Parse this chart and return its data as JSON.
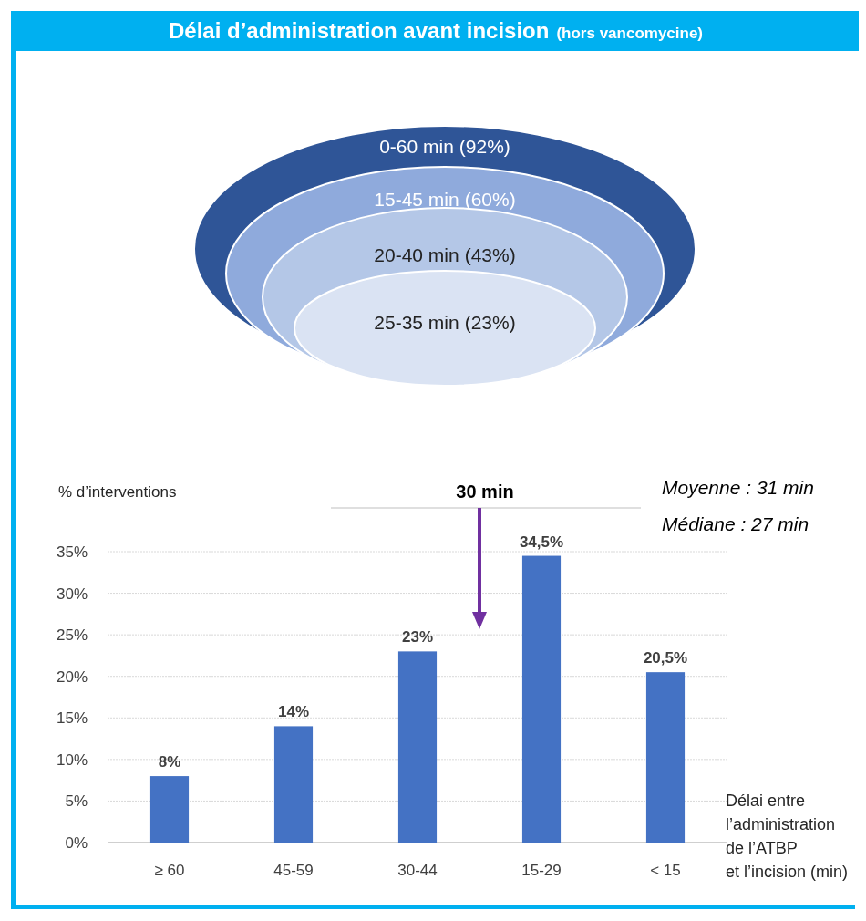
{
  "chart_data": [
    {
      "type": "other",
      "title": "Délai d’administration avant incision",
      "subtitle": "(hors vancomycine)",
      "categories": [
        "0-60 min",
        "15-45 min",
        "20-40 min",
        "25-35 min"
      ],
      "values": [
        92,
        60,
        43,
        23
      ],
      "value_labels": [
        "(92%)",
        "(60%)",
        "(43%)",
        "(23%)"
      ],
      "colors": [
        "#2f5597",
        "#8faadc",
        "#b4c7e7",
        "#dae3f3"
      ]
    },
    {
      "type": "bar",
      "categories": [
        "≥ 60",
        "45-59",
        "30-44",
        "15-29",
        "< 15"
      ],
      "values": [
        8,
        14,
        23,
        34.5,
        20.5
      ],
      "value_labels": [
        "8%",
        "14%",
        "23%",
        "34,5%",
        "20,5%"
      ],
      "color": "#4472c4",
      "ylabel": "% d’interventions",
      "xlabel": "Délai entre\nl’administration\nde l’ATBP\net l’incision (min)",
      "ylim": [
        0,
        35
      ],
      "yticks": [
        {
          "value": 0,
          "label": "0%"
        },
        {
          "value": 5,
          "label": "5%"
        },
        {
          "value": 10,
          "label": "10%"
        },
        {
          "value": 15,
          "label": "15%"
        },
        {
          "value": 20,
          "label": "20%"
        },
        {
          "value": 25,
          "label": "25%"
        },
        {
          "value": 30,
          "label": "30%"
        },
        {
          "value": 35,
          "label": "35%"
        }
      ],
      "grid": "y",
      "annotations": [
        "30 min",
        "Moyenne : 31 min",
        "Médiane : 27 min"
      ]
    }
  ]
}
